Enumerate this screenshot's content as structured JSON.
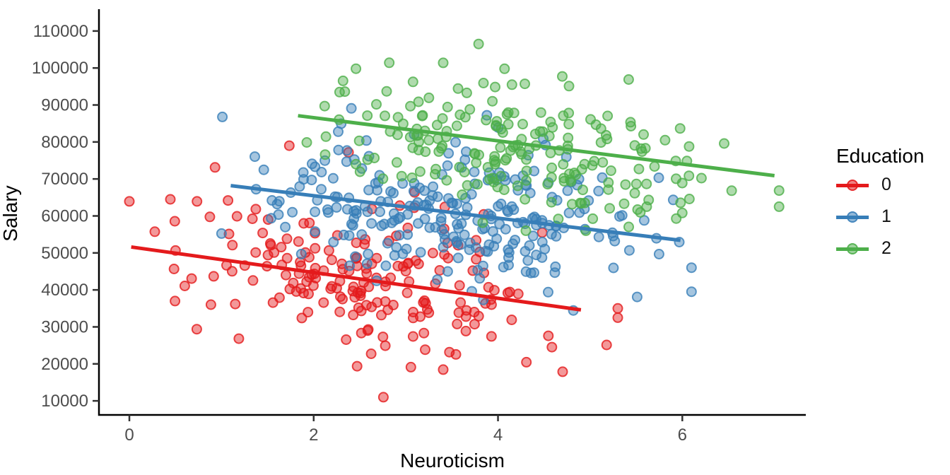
{
  "chart_data": {
    "type": "scatter",
    "title": "",
    "xlabel": "Neuroticism",
    "ylabel": "Salary",
    "x_ticks": [
      0,
      2,
      4,
      6
    ],
    "y_ticks": [
      10000,
      20000,
      30000,
      40000,
      50000,
      60000,
      70000,
      80000,
      90000,
      100000,
      110000
    ],
    "xlim": [
      -0.33,
      7.34
    ],
    "ylim": [
      6200,
      115900
    ],
    "grid": false,
    "legend": {
      "title": "Education",
      "position": "right",
      "entries": [
        {
          "label": "0",
          "color": "#E41A1C"
        },
        {
          "label": "1",
          "color": "#377EB8"
        },
        {
          "label": "2",
          "color": "#4DAF4A"
        }
      ]
    },
    "series": [
      {
        "name": "0",
        "color": "#E41A1C",
        "n": 200,
        "x_mean": 2.6,
        "x_sd": 1.0,
        "x_min": 0.0,
        "x_max": 5.3,
        "y_min": 11000,
        "y_max": 79000,
        "intercept": 51700,
        "slope": -3490,
        "resid_sd": 10500,
        "line": {
          "x1": 0.02,
          "y1": 51600,
          "x2": 4.9,
          "y2": 34600
        }
      },
      {
        "name": "1",
        "color": "#377EB8",
        "n": 260,
        "x_mean": 3.45,
        "x_sd": 0.95,
        "x_min": 1.0,
        "x_max": 6.1,
        "y_min": 30000,
        "y_max": 97500,
        "intercept": 71500,
        "slope": -3020,
        "resid_sd": 10000,
        "line": {
          "x1": 1.1,
          "y1": 68200,
          "x2": 5.98,
          "y2": 53400
        }
      },
      {
        "name": "2",
        "color": "#4DAF4A",
        "n": 210,
        "x_mean": 4.2,
        "x_sd": 1.05,
        "x_min": 1.8,
        "x_max": 7.05,
        "y_min": 56000,
        "y_max": 111000,
        "intercept": 92800,
        "slope": -3130,
        "resid_sd": 9000,
        "line": {
          "x1": 1.83,
          "y1": 87100,
          "x2": 7.0,
          "y2": 70900
        }
      }
    ],
    "point_style": {
      "radius": 6.5,
      "fill_opacity": 0.45,
      "stroke_opacity": 0.8,
      "stroke_width": 2
    },
    "line_width": 5,
    "seed": 7
  },
  "styles": {
    "background": "#FFFFFF",
    "axis_line_color": "#000000",
    "tick_mark_color": "#333333",
    "tick_label_color": "#4D4D4D",
    "axis_title_color": "#000000",
    "legend_text_color": "#111111"
  }
}
